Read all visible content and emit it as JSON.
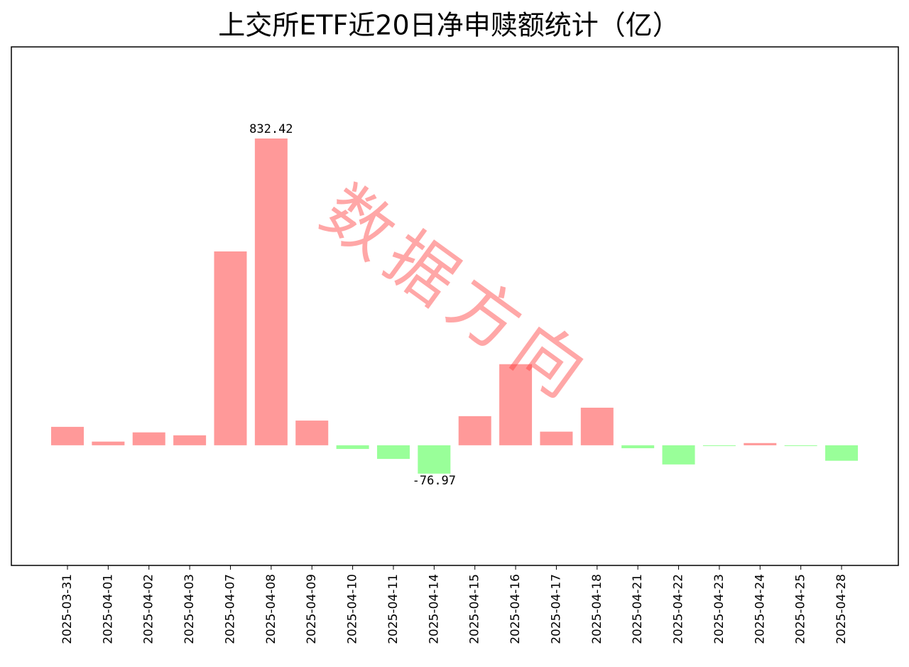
{
  "chart_data": {
    "type": "bar",
    "title": "上交所ETF近20日净申赎额统计（亿）",
    "watermark": "数据方向",
    "categories": [
      "2025-03-31",
      "2025-04-01",
      "2025-04-02",
      "2025-04-03",
      "2025-04-07",
      "2025-04-08",
      "2025-04-09",
      "2025-04-10",
      "2025-04-11",
      "2025-04-14",
      "2025-04-15",
      "2025-04-16",
      "2025-04-17",
      "2025-04-18",
      "2025-04-21",
      "2025-04-22",
      "2025-04-23",
      "2025-04-24",
      "2025-04-25",
      "2025-04-28"
    ],
    "values": [
      50,
      10,
      35,
      27,
      526,
      832.42,
      67,
      -10,
      -37,
      -76.97,
      79,
      220,
      37,
      102,
      -8,
      -52,
      -2,
      6,
      -2,
      -42
    ],
    "colors": {
      "positive": "#ff9999",
      "negative": "#99ff99"
    },
    "label_extremes": true,
    "ylim": [
      -326,
      1081
    ]
  }
}
